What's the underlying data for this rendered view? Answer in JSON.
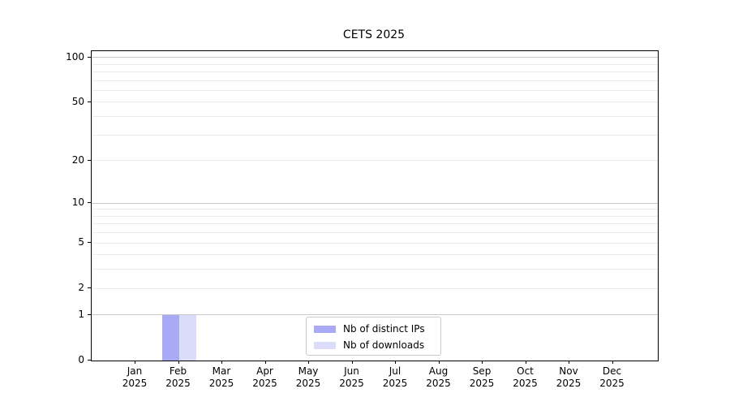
{
  "chart_data": {
    "type": "bar",
    "title": "CETS 2025",
    "categories": [
      "Jan 2025",
      "Feb 2025",
      "Mar 2025",
      "Apr 2025",
      "May 2025",
      "Jun 2025",
      "Jul 2025",
      "Aug 2025",
      "Sep 2025",
      "Oct 2025",
      "Nov 2025",
      "Dec 2025"
    ],
    "series": [
      {
        "name": "Nb of distinct IPs",
        "color": "#a9a9f6",
        "values": [
          0,
          1,
          0,
          0,
          0,
          0,
          0,
          0,
          0,
          0,
          0,
          0
        ]
      },
      {
        "name": "Nb of downloads",
        "color": "#dbdbfa",
        "values": [
          0,
          1,
          0,
          0,
          0,
          0,
          0,
          0,
          0,
          0,
          0,
          0
        ]
      }
    ],
    "xlabel": "",
    "ylabel": "",
    "yscale": "log10(1+y)",
    "ylim": [
      0,
      110
    ],
    "y_labeled_ticks": [
      0,
      1,
      2,
      5,
      10,
      20,
      50,
      100
    ],
    "y_major_gridlines": [
      1,
      10,
      100
    ],
    "y_minor_gridlines": [
      2,
      3,
      4,
      5,
      6,
      7,
      8,
      9,
      20,
      30,
      40,
      50,
      60,
      70,
      80,
      90
    ],
    "grid": "horizontal",
    "legend": {
      "position": "lower center inside",
      "entries": [
        "Nb of distinct IPs",
        "Nb of downloads"
      ]
    }
  }
}
